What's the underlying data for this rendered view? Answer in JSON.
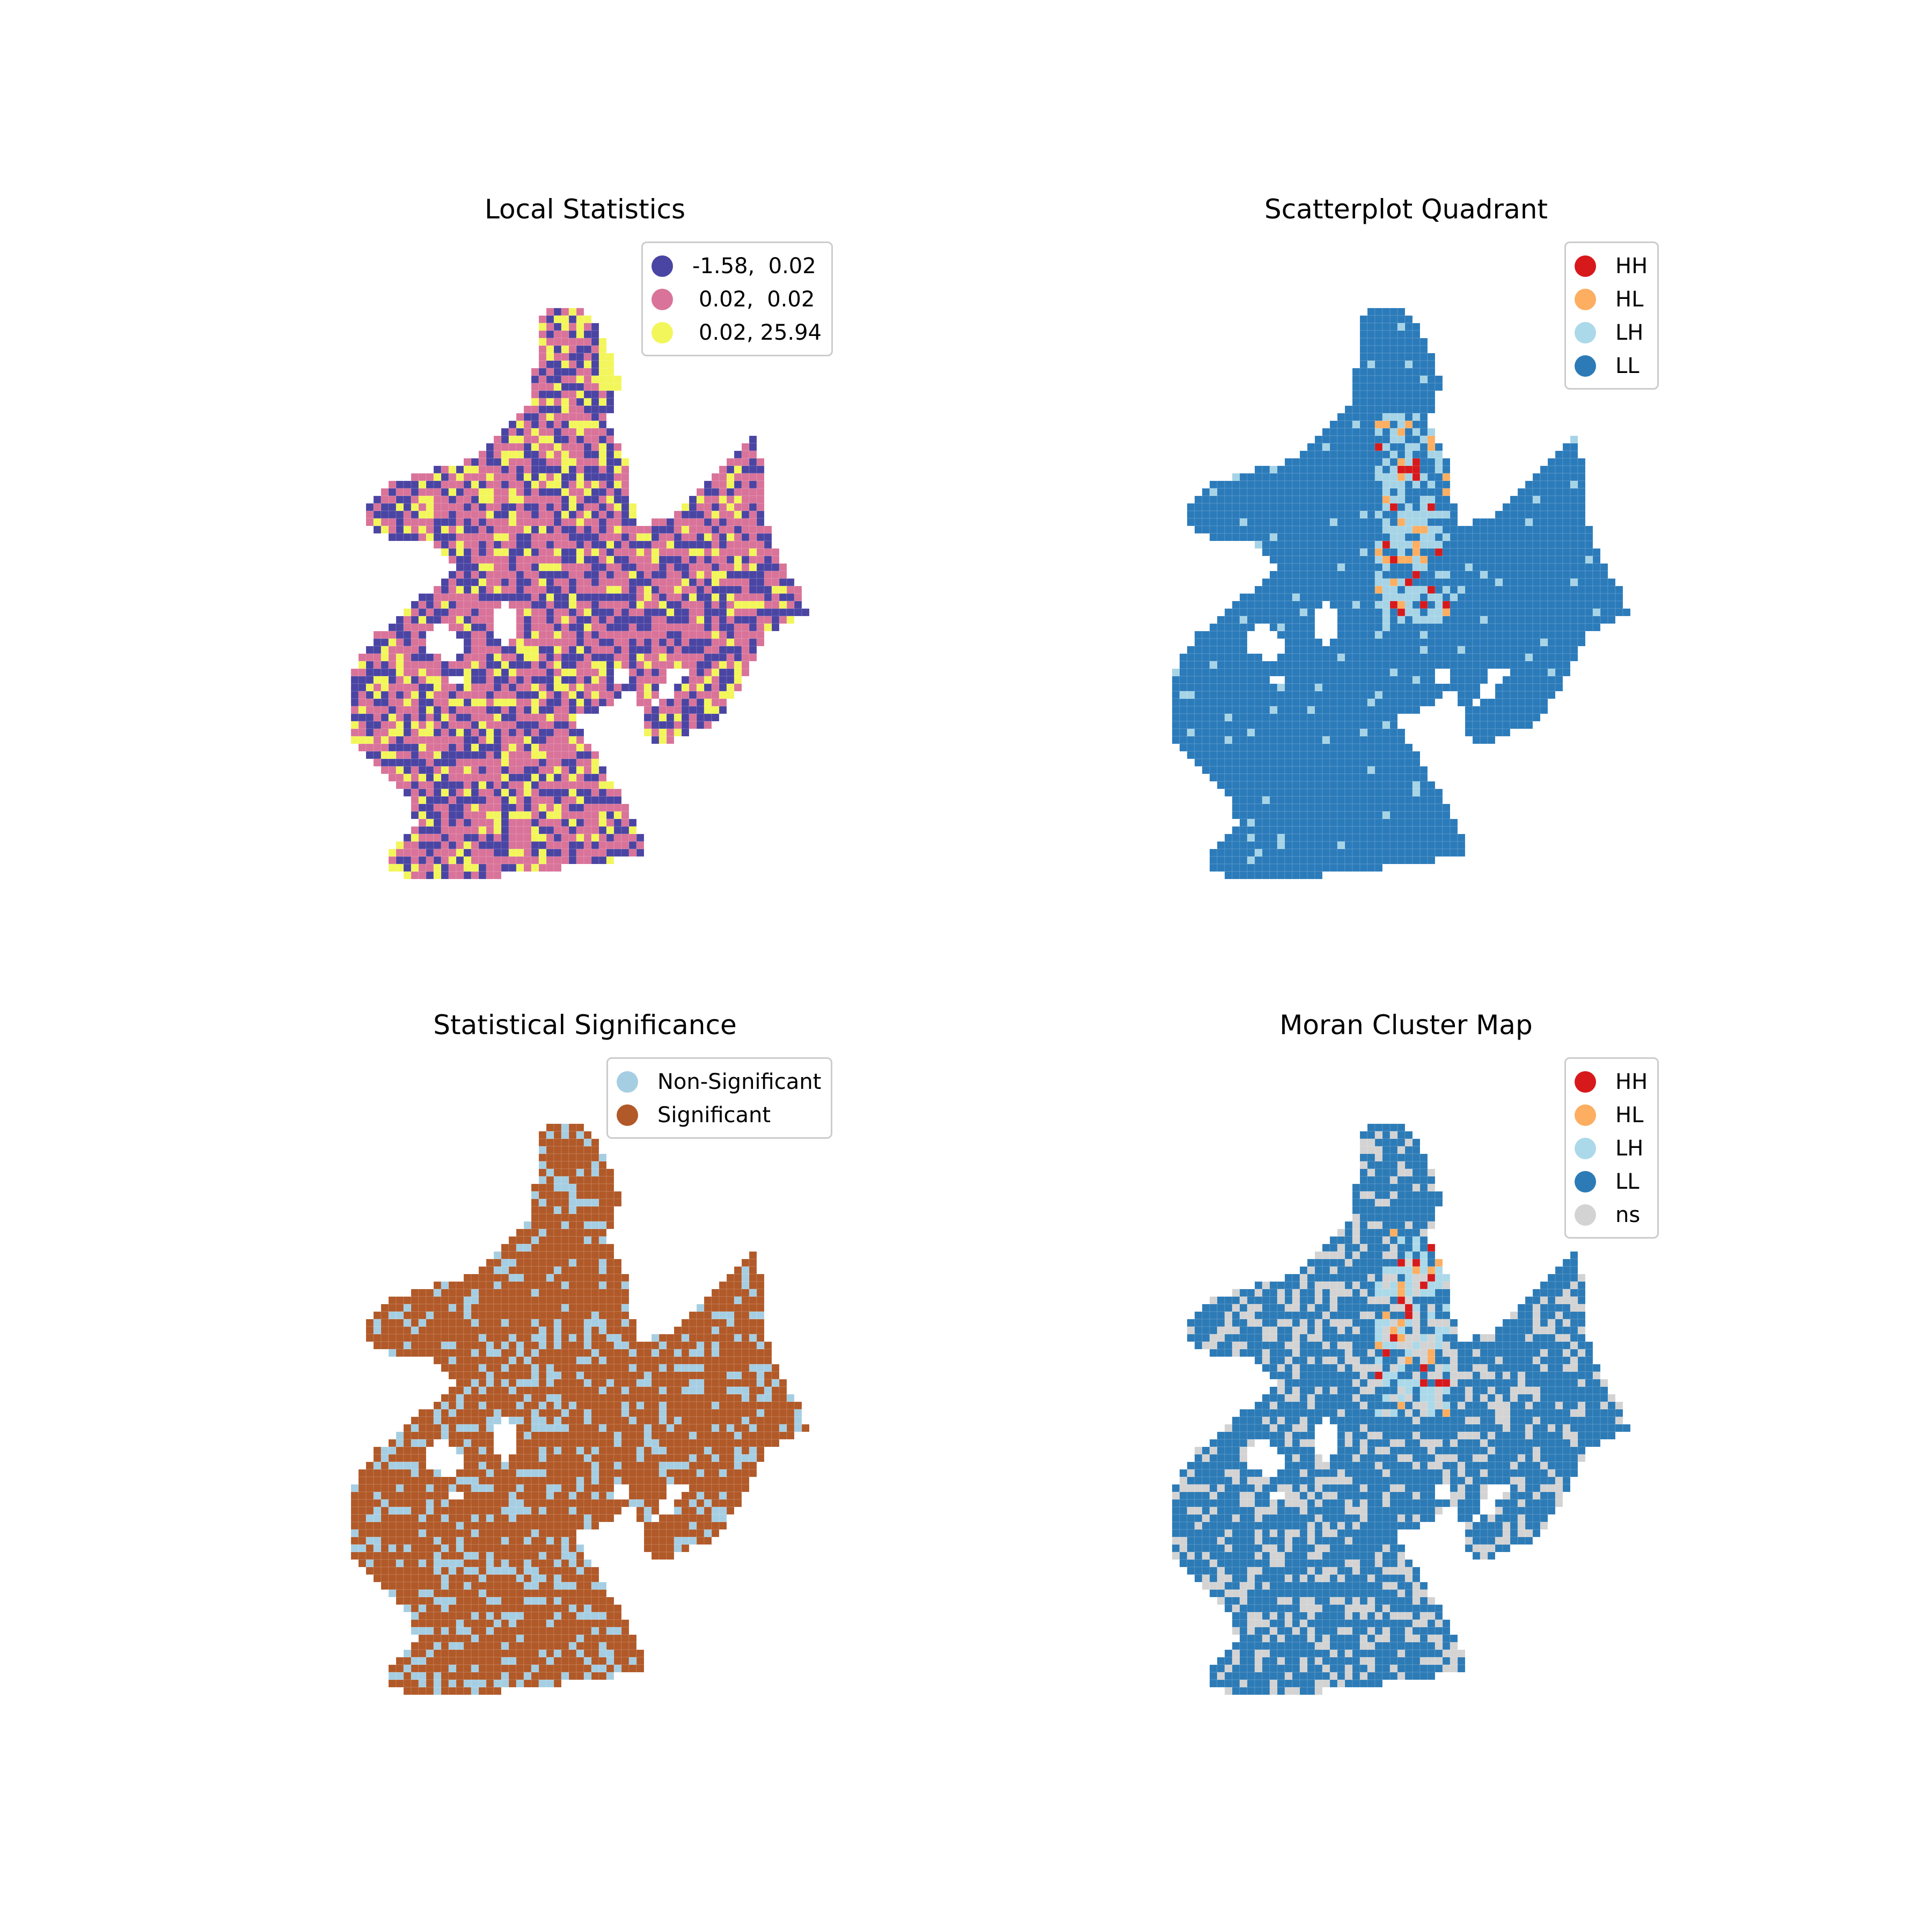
{
  "panels": [
    {
      "title": "Local Statistics",
      "palette": [
        "#4a45a3",
        "#d97399",
        "#f2f65a"
      ],
      "legend": [
        {
          "label": "-1.58,  0.02",
          "color": "#4a45a3"
        },
        {
          "label": "0.02,  0.02",
          "color": "#d97399"
        },
        {
          "label": "0.02, 25.94",
          "color": "#f2f65a"
        }
      ]
    },
    {
      "title": "Scatterplot Quadrant",
      "palette": [
        "#2b7bba",
        "#a6d4e6",
        "#fdae61",
        "#d7191c"
      ],
      "legend": [
        {
          "label": "HH",
          "color": "#d7191c"
        },
        {
          "label": "HL",
          "color": "#fdae61"
        },
        {
          "label": "LH",
          "color": "#abd9e9"
        },
        {
          "label": "LL",
          "color": "#2c7bb6"
        }
      ]
    },
    {
      "title": "Statistical Significance",
      "palette": [
        "#b15928",
        "#a6cee3"
      ],
      "legend": [
        {
          "label": "Non-Significant",
          "color": "#a6cee3"
        },
        {
          "label": "Significant",
          "color": "#b15928"
        }
      ]
    },
    {
      "title": "Moran Cluster Map",
      "palette": [
        "#2c7bb6",
        "#d3d3d3",
        "#abd9e9",
        "#fdae61",
        "#d7191c"
      ],
      "legend": [
        {
          "label": "HH",
          "color": "#d7191c"
        },
        {
          "label": "HL",
          "color": "#fdae61"
        },
        {
          "label": "LH",
          "color": "#abd9e9"
        },
        {
          "label": "LL",
          "color": "#2c7bb6"
        },
        {
          "label": "ns",
          "color": "#d3d3d3"
        }
      ]
    }
  ]
}
